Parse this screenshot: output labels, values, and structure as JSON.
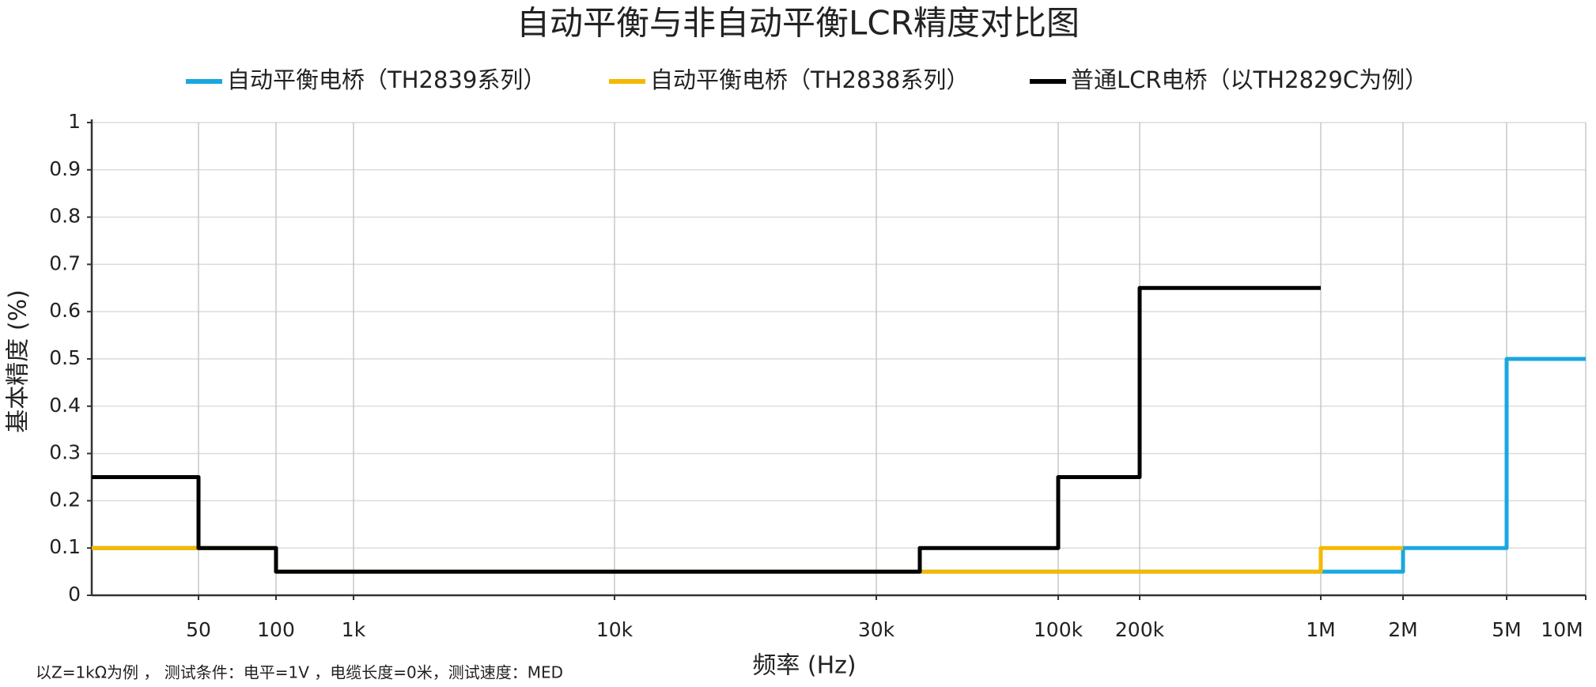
{
  "chart_data": {
    "type": "line",
    "title": "自动平衡与非自动平衡LCR精度对比图",
    "x_label": "频率 (Hz)",
    "y_label": "基本精度 (%)",
    "note": "以Z=1kΩ为例 ， 测试条件：电平=1V ，电缆长度=0米，测试速度：MED",
    "xlim": [
      20,
      10000000
    ],
    "xticks": [
      {
        "value": 50,
        "label": "50"
      },
      {
        "value": 100,
        "label": "100"
      },
      {
        "value": 1000,
        "label": "1k"
      },
      {
        "value": 10000,
        "label": "10k"
      },
      {
        "value": 30000,
        "label": "30k"
      },
      {
        "value": 100000,
        "label": "100k"
      },
      {
        "value": 200000,
        "label": "200k"
      },
      {
        "value": 1000000,
        "label": "1M"
      },
      {
        "value": 2000000,
        "label": "2M"
      },
      {
        "value": 5000000,
        "label": "5M"
      },
      {
        "value": 10000000,
        "label": "10M"
      }
    ],
    "ylim": [
      0,
      1
    ],
    "yticks": [
      0,
      0.1,
      0.2,
      0.3,
      0.4,
      0.5,
      0.6,
      0.7,
      0.8,
      0.9,
      1
    ],
    "grid": true,
    "legend": "top",
    "series": [
      {
        "name": "自动平衡电桥（TH2839系列）",
        "color": "#1aa7e0",
        "x": [
          20,
          100,
          100,
          2000000,
          2000000,
          5000000,
          5000000,
          10000000
        ],
        "values": [
          0.1,
          0.1,
          0.05,
          0.05,
          0.1,
          0.1,
          0.5,
          0.5
        ]
      },
      {
        "name": "自动平衡电桥（TH2838系列）",
        "color": "#f5b800",
        "x": [
          20,
          100,
          100,
          1000000,
          1000000,
          2000000
        ],
        "values": [
          0.1,
          0.1,
          0.05,
          0.05,
          0.1,
          0.1
        ]
      },
      {
        "name": "普通LCR电桥（以TH2829C为例）",
        "color": "#000000",
        "x": [
          20,
          50,
          50,
          100,
          100,
          40000,
          40000,
          100000,
          100000,
          200000,
          200000,
          1000000
        ],
        "values": [
          0.25,
          0.25,
          0.1,
          0.1,
          0.05,
          0.05,
          0.1,
          0.1,
          0.25,
          0.25,
          0.65,
          0.65
        ]
      }
    ]
  }
}
